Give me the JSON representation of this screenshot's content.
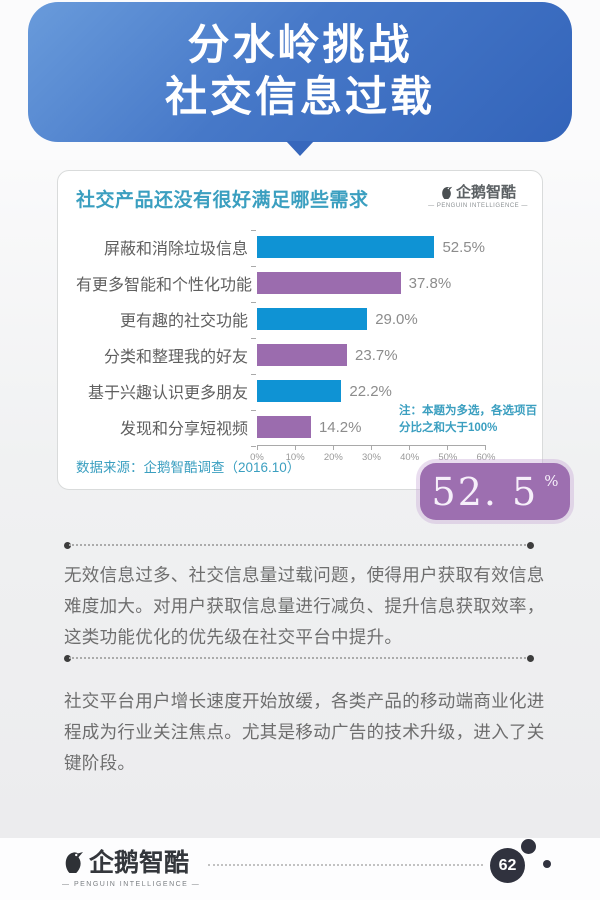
{
  "header": {
    "title_line1": "分水岭挑战",
    "title_line2": "社交信息过载"
  },
  "brand": {
    "name": "企鹅智酷",
    "subtitle": "— PENGUIN INTELLIGENCE —"
  },
  "chart_card": {
    "title": "社交产品还没有很好满足哪些需求",
    "note": "注：本题为多选，各选项百分比之和大于100%",
    "source": "数据来源：企鹅智酷调查（2016.10）"
  },
  "chart_data": {
    "type": "bar",
    "orientation": "horizontal",
    "title": "社交产品还没有很好满足哪些需求",
    "categories": [
      "屏蔽和消除垃圾信息",
      "有更多智能和个性化功能",
      "更有趣的社交功能",
      "分类和整理我的好友",
      "基于兴趣认识更多朋友",
      "发现和分享短视频"
    ],
    "values": [
      52.5,
      37.8,
      29.0,
      23.7,
      22.2,
      14.2
    ],
    "labels": [
      "52.5%",
      "37.8%",
      "29.0%",
      "23.7%",
      "22.2%",
      "14.2%"
    ],
    "bar_colors": [
      "#0f93d4",
      "#9b6cae"
    ],
    "xlim": [
      0,
      60
    ],
    "x_ticks": [
      "0%",
      "10%",
      "20%",
      "30%",
      "40%",
      "50%",
      "60%"
    ],
    "grid": false,
    "legend": false
  },
  "highlight_badge": {
    "value": "52. 5",
    "unit": "%"
  },
  "paragraphs": [
    "无效信息过多、社交信息量过载问题，使得用户获取有效信息难度加大。对用户获取信息量进行减负、提升信息获取效率，这类功能优化的优先级在社交平台中提升。",
    "社交平台用户增长速度开始放缓，各类产品的移动端商业化进程成为行业关注焦点。尤其是移动广告的技术升级，进入了关键阶段。"
  ],
  "footer": {
    "page_number": "62"
  },
  "colors": {
    "banner_blue_light": "#699bdb",
    "banner_blue_dark": "#3364ba",
    "accent_teal": "#3b9fc0",
    "badge_purple": "#9d6fb0",
    "bar_blue": "#0f93d4",
    "bar_purple": "#9b6cae",
    "footer_dark": "#30323e"
  }
}
